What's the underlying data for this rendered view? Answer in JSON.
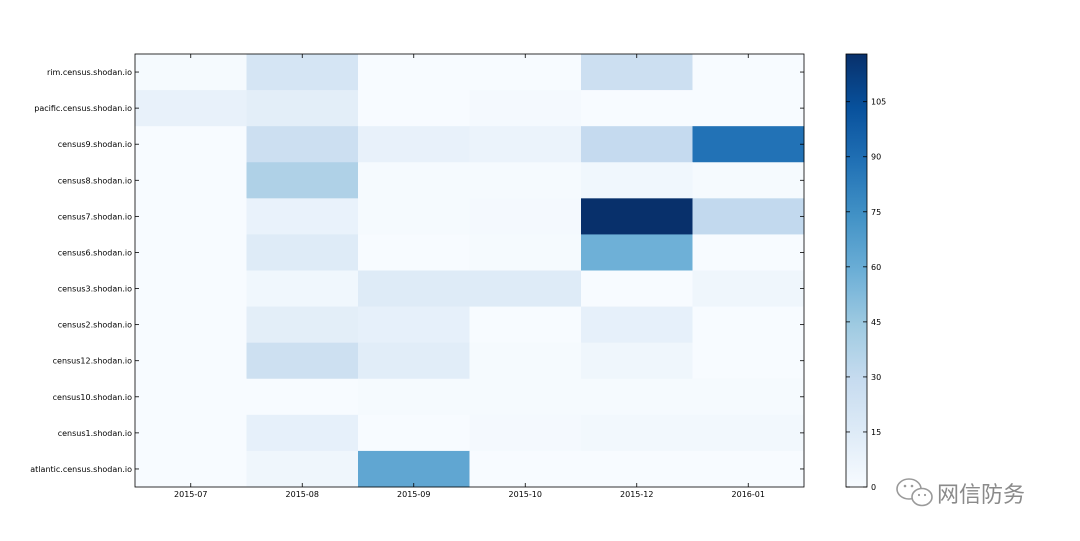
{
  "chart_data": {
    "type": "heatmap",
    "title": "",
    "xlabel": "",
    "ylabel": "",
    "x_categories": [
      "2015-07",
      "2015-08",
      "2015-09",
      "2015-10",
      "2015-12",
      "2016-01"
    ],
    "y_categories": [
      "rim.census.shodan.io",
      "pacific.census.shodan.io",
      "census9.shodan.io",
      "census8.shodan.io",
      "census7.shodan.io",
      "census6.shodan.io",
      "census3.shodan.io",
      "census2.shodan.io",
      "census12.shodan.io",
      "census10.shodan.io",
      "census1.shodan.io",
      "atlantic.census.shodan.io"
    ],
    "values": [
      [
        1,
        20,
        0,
        0,
        26,
        0
      ],
      [
        9,
        12,
        0,
        2,
        0,
        0
      ],
      [
        0,
        26,
        9,
        7,
        30,
        88
      ],
      [
        0,
        38,
        1,
        1,
        4,
        1
      ],
      [
        0,
        8,
        1,
        2,
        118,
        31
      ],
      [
        0,
        15,
        0,
        1,
        58,
        0
      ],
      [
        0,
        4,
        15,
        15,
        0,
        5
      ],
      [
        0,
        12,
        10,
        0,
        10,
        0
      ],
      [
        0,
        25,
        13,
        1,
        5,
        0
      ],
      [
        0,
        0,
        1,
        1,
        1,
        1
      ],
      [
        0,
        10,
        0,
        2,
        3,
        3
      ],
      [
        0,
        5,
        63,
        0,
        0,
        0
      ]
    ],
    "colorbar": {
      "min": 0,
      "max": 118,
      "ticks": [
        0,
        15,
        30,
        45,
        60,
        75,
        90,
        105
      ],
      "colormap": "Blues"
    },
    "grid": false
  },
  "watermark": {
    "text": "网信防务",
    "icon": "wechat-icon"
  },
  "colors": {
    "axis": "#000000",
    "background": "#ffffff",
    "watermark": "#8a8a8a"
  }
}
